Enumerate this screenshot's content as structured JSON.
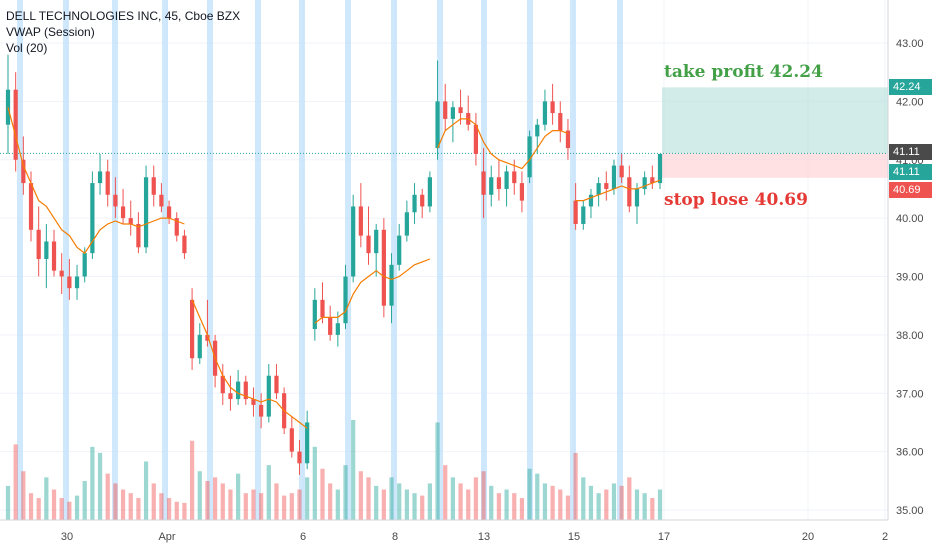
{
  "legend": {
    "symbol_line": "DELL TECHNOLOGIES INC, 45, Cboe BZX",
    "vwap_line": "VWAP (Session)",
    "vol_line": "Vol (20)"
  },
  "annotations": {
    "take_profit": "take profit 42.24",
    "stop_loss": "stop lose 40.69"
  },
  "price_labels": {
    "take_profit": "42.24",
    "last_price": "41.11",
    "entry": "41.11",
    "stop_loss": "40.69"
  },
  "colors": {
    "up": "#26a69a",
    "down": "#ef5350",
    "vwap": "#f57c00",
    "session_band": "#bbdefb",
    "profit_zone": "#b2dfdb",
    "loss_zone": "#ffcdd2",
    "profit_text": "#43a047",
    "loss_text": "#e53935",
    "dark_label": "#4a4a4a"
  },
  "chart_data": {
    "type": "candlestick",
    "title": "DELL TECHNOLOGIES INC, 45, Cboe BZX",
    "y_ticks": [
      "35.00",
      "36.00",
      "37.00",
      "38.00",
      "39.00",
      "40.00",
      "41.00",
      "42.00",
      "43.00"
    ],
    "ylim": [
      34.9,
      43.6
    ],
    "x_ticks": [
      "30",
      "Apr",
      "6",
      "8",
      "13",
      "15",
      "17",
      "20",
      "2"
    ],
    "take_profit": 42.24,
    "entry": 41.11,
    "stop_loss": 40.69,
    "indicators": [
      "VWAP (Session)",
      "Vol (20)"
    ],
    "grid": true,
    "candles": [
      [
        41.6,
        42.8,
        41.1,
        42.2
      ],
      [
        42.2,
        42.5,
        40.8,
        41.0
      ],
      [
        41.0,
        41.4,
        40.4,
        40.6
      ],
      [
        40.6,
        40.8,
        39.6,
        39.8
      ],
      [
        39.8,
        40.2,
        39.0,
        39.3
      ],
      [
        39.3,
        39.9,
        38.8,
        39.6
      ],
      [
        39.6,
        39.8,
        39.0,
        39.1
      ],
      [
        39.1,
        39.4,
        38.7,
        39.0
      ],
      [
        39.0,
        39.3,
        38.6,
        38.8
      ],
      [
        38.8,
        39.2,
        38.6,
        39.0
      ],
      [
        39.0,
        39.5,
        38.9,
        39.4
      ],
      [
        39.4,
        40.8,
        39.3,
        40.6
      ],
      [
        40.6,
        41.1,
        40.4,
        40.8
      ],
      [
        40.8,
        41.0,
        40.2,
        40.4
      ],
      [
        40.4,
        40.7,
        40.0,
        40.2
      ],
      [
        40.2,
        40.5,
        39.9,
        40.0
      ],
      [
        40.0,
        40.3,
        39.7,
        39.9
      ],
      [
        39.9,
        40.1,
        39.4,
        39.5
      ],
      [
        39.5,
        40.9,
        39.4,
        40.7
      ],
      [
        40.7,
        40.9,
        40.2,
        40.4
      ],
      [
        40.4,
        40.6,
        40.1,
        40.2
      ],
      [
        40.2,
        40.3,
        39.9,
        40.0
      ],
      [
        40.0,
        40.1,
        39.6,
        39.7
      ],
      [
        39.7,
        39.8,
        39.3,
        39.4
      ],
      [
        38.6,
        38.8,
        37.4,
        37.6
      ],
      [
        37.6,
        38.2,
        37.5,
        38.0
      ],
      [
        38.0,
        38.6,
        37.8,
        37.9
      ],
      [
        37.9,
        38.0,
        37.1,
        37.3
      ],
      [
        37.3,
        37.5,
        36.8,
        37.0
      ],
      [
        37.0,
        37.3,
        36.7,
        36.9
      ],
      [
        36.9,
        37.4,
        36.8,
        37.2
      ],
      [
        37.2,
        37.3,
        36.8,
        36.9
      ],
      [
        36.9,
        37.1,
        36.6,
        36.8
      ],
      [
        36.8,
        37.0,
        36.4,
        36.6
      ],
      [
        36.6,
        37.5,
        36.5,
        37.3
      ],
      [
        37.3,
        37.5,
        36.9,
        37.0
      ],
      [
        37.0,
        37.1,
        36.3,
        36.4
      ],
      [
        36.4,
        36.6,
        35.9,
        36.0
      ],
      [
        36.0,
        36.2,
        35.6,
        35.8
      ],
      [
        35.8,
        36.7,
        35.7,
        36.5
      ],
      [
        38.1,
        38.8,
        37.9,
        38.6
      ],
      [
        38.6,
        38.9,
        38.2,
        38.3
      ],
      [
        38.3,
        38.5,
        37.9,
        38.0
      ],
      [
        38.0,
        38.4,
        37.8,
        38.2
      ],
      [
        38.2,
        39.2,
        38.1,
        39.0
      ],
      [
        39.0,
        40.4,
        38.9,
        40.2
      ],
      [
        40.2,
        40.6,
        39.5,
        39.7
      ],
      [
        39.7,
        40.2,
        39.2,
        39.4
      ],
      [
        39.4,
        39.9,
        39.0,
        39.8
      ],
      [
        39.8,
        40.0,
        38.3,
        38.5
      ],
      [
        38.5,
        39.4,
        38.2,
        39.2
      ],
      [
        39.2,
        39.9,
        39.1,
        39.7
      ],
      [
        39.7,
        40.3,
        39.6,
        40.1
      ],
      [
        40.1,
        40.6,
        39.9,
        40.4
      ],
      [
        40.4,
        40.5,
        40.0,
        40.2
      ],
      [
        40.2,
        40.8,
        40.1,
        40.7
      ],
      [
        41.2,
        42.7,
        41.0,
        42.0
      ],
      [
        42.0,
        42.3,
        41.5,
        41.7
      ],
      [
        41.7,
        42.0,
        41.3,
        41.9
      ],
      [
        41.9,
        42.2,
        41.6,
        41.8
      ],
      [
        41.8,
        42.1,
        41.5,
        41.6
      ],
      [
        41.6,
        41.8,
        40.9,
        41.1
      ],
      [
        40.8,
        41.2,
        40.0,
        40.4
      ],
      [
        40.4,
        40.9,
        40.2,
        40.7
      ],
      [
        40.7,
        41.0,
        40.3,
        40.5
      ],
      [
        40.5,
        40.9,
        40.2,
        40.8
      ],
      [
        40.8,
        41.0,
        40.4,
        40.6
      ],
      [
        40.6,
        40.8,
        40.1,
        40.3
      ],
      [
        40.7,
        41.5,
        40.6,
        41.4
      ],
      [
        41.4,
        41.7,
        41.1,
        41.6
      ],
      [
        41.6,
        42.2,
        41.5,
        42.0
      ],
      [
        42.0,
        42.3,
        41.6,
        41.8
      ],
      [
        41.8,
        42.0,
        41.3,
        41.5
      ],
      [
        41.5,
        41.7,
        41.0,
        41.2
      ],
      [
        40.3,
        40.6,
        39.8,
        39.9
      ],
      [
        39.9,
        40.3,
        39.8,
        40.2
      ],
      [
        40.2,
        40.5,
        40.0,
        40.4
      ],
      [
        40.4,
        40.7,
        40.2,
        40.6
      ],
      [
        40.6,
        40.8,
        40.3,
        40.5
      ],
      [
        40.5,
        41.0,
        40.4,
        40.9
      ],
      [
        40.9,
        41.1,
        40.6,
        40.7
      ],
      [
        40.7,
        40.9,
        40.1,
        40.2
      ],
      [
        40.2,
        40.6,
        39.9,
        40.5
      ],
      [
        40.5,
        40.8,
        40.4,
        40.7
      ],
      [
        40.7,
        40.9,
        40.5,
        40.6
      ],
      [
        40.6,
        41.1,
        40.5,
        41.1
      ]
    ],
    "vwap": [
      41.9,
      41.4,
      40.9,
      40.6,
      40.3,
      40.2,
      40.0,
      39.8,
      39.7,
      39.5,
      39.4,
      39.6,
      39.8,
      39.9,
      39.95,
      39.9,
      39.9,
      39.85,
      39.9,
      39.95,
      40.0,
      40.0,
      39.95,
      39.9,
      38.6,
      38.3,
      38.0,
      37.6,
      37.3,
      37.1,
      37.0,
      36.95,
      36.9,
      36.85,
      36.9,
      36.85,
      36.7,
      36.6,
      36.5,
      36.4,
      38.2,
      38.3,
      38.3,
      38.3,
      38.4,
      38.7,
      38.9,
      39.0,
      39.1,
      39.0,
      38.95,
      39.0,
      39.1,
      39.2,
      39.25,
      39.3,
      41.2,
      41.5,
      41.6,
      41.7,
      41.7,
      41.6,
      41.3,
      41.1,
      41.0,
      40.95,
      40.9,
      40.85,
      41.0,
      41.2,
      41.4,
      41.5,
      41.5,
      41.45,
      40.3,
      40.3,
      40.35,
      40.4,
      40.45,
      40.5,
      40.55,
      40.5,
      40.5,
      40.55,
      40.6,
      40.65
    ],
    "volume": [
      28,
      62,
      40,
      22,
      18,
      35,
      25,
      18,
      15,
      20,
      32,
      60,
      55,
      38,
      30,
      25,
      22,
      18,
      48,
      30,
      22,
      18,
      15,
      14,
      65,
      40,
      32,
      35,
      30,
      25,
      38,
      22,
      25,
      22,
      45,
      30,
      20,
      22,
      25,
      35,
      60,
      42,
      30,
      25,
      45,
      82,
      40,
      35,
      28,
      25,
      35,
      30,
      25,
      22,
      20,
      30,
      80,
      45,
      35,
      30,
      25,
      35,
      40,
      28,
      22,
      25,
      22,
      18,
      42,
      38,
      30,
      28,
      25,
      20,
      55,
      35,
      28,
      22,
      25,
      30,
      28,
      35,
      25,
      22,
      18,
      25
    ]
  }
}
